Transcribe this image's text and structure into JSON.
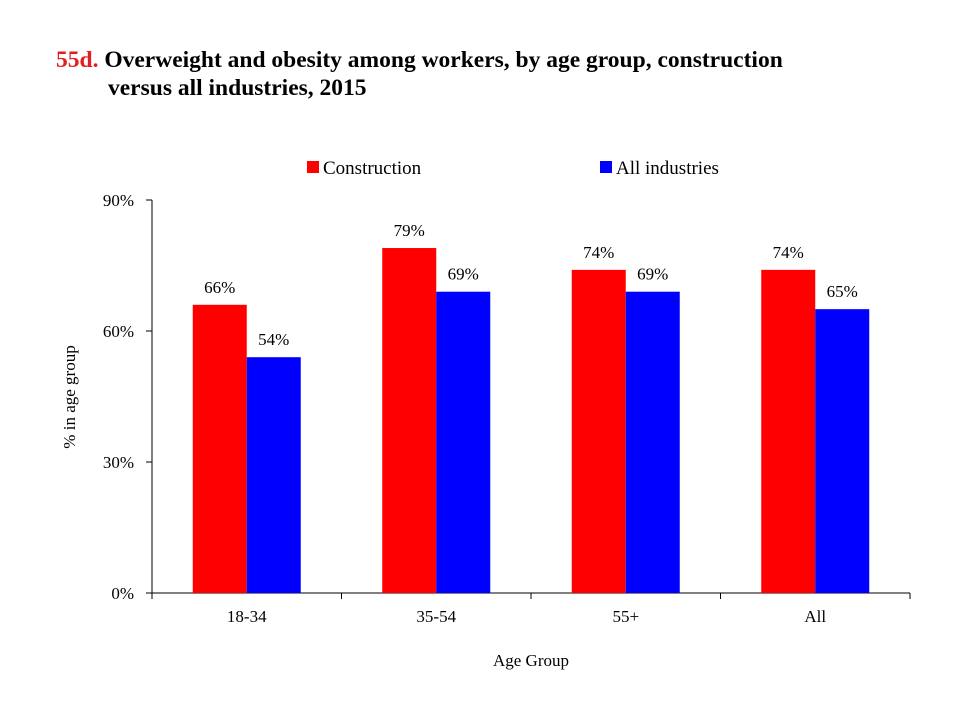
{
  "figure": {
    "number": "55d.",
    "title_line1": "Overweight and obesity among workers, by age group, construction",
    "title_line2": "versus all industries, 2015"
  },
  "colors": {
    "title_number": "#e41e1e",
    "construction": "#ff0000",
    "all_industries": "#0000ff"
  },
  "chart_data": {
    "type": "bar",
    "title": "Overweight and obesity among workers, by age group, construction versus all industries, 2015",
    "categories": [
      "18-34",
      "35-54",
      "55+",
      "All"
    ],
    "series": [
      {
        "name": "Construction",
        "values": [
          66,
          79,
          74,
          74
        ],
        "labels": [
          "66%",
          "79%",
          "74%",
          "74%"
        ],
        "color": "#ff0000"
      },
      {
        "name": "All industries",
        "values": [
          54,
          69,
          69,
          65
        ],
        "labels": [
          "54%",
          "69%",
          "69%",
          "65%"
        ],
        "color": "#0000ff"
      }
    ],
    "xlabel": "Age Group",
    "ylabel": "% in age group",
    "ylim": [
      0,
      90
    ],
    "yticks": [
      0,
      30,
      60,
      90
    ],
    "ytick_labels": [
      "0%",
      "30%",
      "60%",
      "90%"
    ],
    "grid": false,
    "legend_position": "top"
  }
}
